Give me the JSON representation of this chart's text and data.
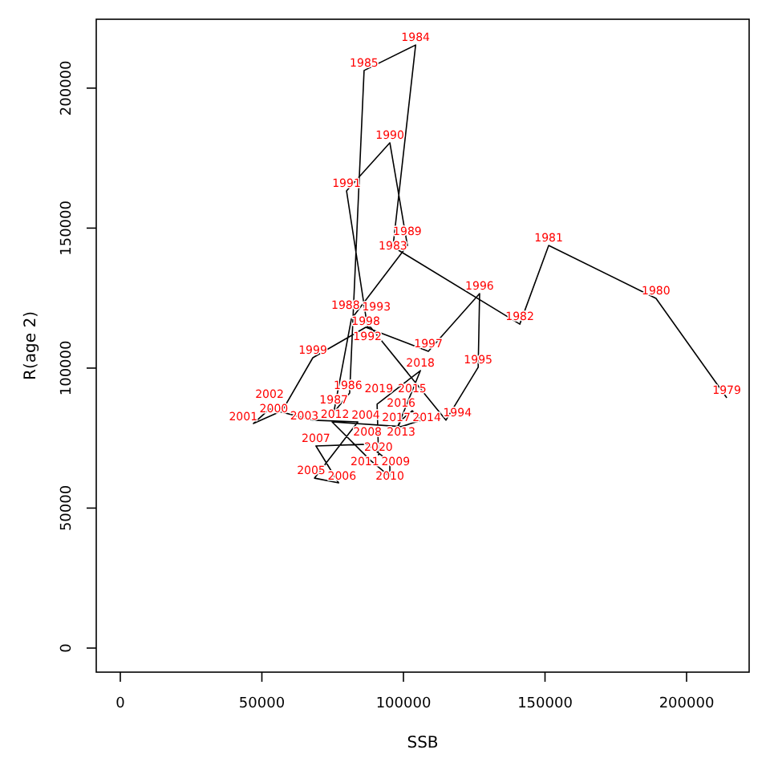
{
  "chart_data": {
    "type": "line",
    "xlabel": "SSB",
    "ylabel": "R(age 2)",
    "color": "#000000",
    "marker": "none",
    "x": [
      214200,
      189200,
      151300,
      141100,
      96300,
      104300,
      86100,
      81000,
      75400,
      81600,
      101400,
      95200,
      79900,
      87300,
      88400,
      115000,
      126400,
      126900,
      108800,
      86700,
      68000,
      57200,
      47000,
      52700,
      68000,
      83900,
      68600,
      77100,
      69100,
      87300,
      95200,
      95200,
      88400,
      74800,
      99200,
      106500,
      103100,
      99200,
      97500,
      106000,
      90700,
      91200
    ],
    "values": [
      89400,
      124900,
      143800,
      115700,
      143300,
      215400,
      206300,
      91100,
      84200,
      117500,
      143800,
      180500,
      163300,
      114600,
      114600,
      81400,
      100300,
      126600,
      106000,
      114600,
      103700,
      84800,
      80200,
      85400,
      81400,
      80800,
      60700,
      59000,
      72200,
      72800,
      66500,
      61300,
      67000,
      80800,
      79100,
      81400,
      84800,
      81400,
      77900,
      99100,
      87100,
      68800
    ],
    "annotations": [
      {
        "text": "1979",
        "x": 214200,
        "y": 89400
      },
      {
        "text": "1980",
        "x": 189200,
        "y": 124900
      },
      {
        "text": "1981",
        "x": 151300,
        "y": 143800
      },
      {
        "text": "1982",
        "x": 141100,
        "y": 115700
      },
      {
        "text": "1983",
        "x": 96300,
        "y": 143300
      },
      {
        "text": "1984",
        "x": 104300,
        "y": 215400
      },
      {
        "text": "1985",
        "x": 86100,
        "y": 206300
      },
      {
        "text": "1986",
        "x": 81000,
        "y": 91100
      },
      {
        "text": "1987",
        "x": 75400,
        "y": 84200
      },
      {
        "text": "1988",
        "x": 81600,
        "y": 117500
      },
      {
        "text": "1989",
        "x": 101400,
        "y": 143800
      },
      {
        "text": "1990",
        "x": 95200,
        "y": 180500
      },
      {
        "text": "1991",
        "x": 79900,
        "y": 163300
      },
      {
        "text": "1992",
        "x": 87300,
        "y": 114600
      },
      {
        "text": "1993",
        "x": 88400,
        "y": 114600
      },
      {
        "text": "1994",
        "x": 115000,
        "y": 81400
      },
      {
        "text": "1995",
        "x": 126400,
        "y": 100300
      },
      {
        "text": "1996",
        "x": 126900,
        "y": 126600
      },
      {
        "text": "1997",
        "x": 108800,
        "y": 106000
      },
      {
        "text": "1998",
        "x": 86700,
        "y": 114600
      },
      {
        "text": "1999",
        "x": 68000,
        "y": 103700
      },
      {
        "text": "2000",
        "x": 57200,
        "y": 84800
      },
      {
        "text": "2001",
        "x": 47000,
        "y": 80200
      },
      {
        "text": "2002",
        "x": 52700,
        "y": 85400
      },
      {
        "text": "2003",
        "x": 68000,
        "y": 81400
      },
      {
        "text": "2004",
        "x": 83900,
        "y": 80800
      },
      {
        "text": "2005",
        "x": 68600,
        "y": 60700
      },
      {
        "text": "2006",
        "x": 77100,
        "y": 59000
      },
      {
        "text": "2007",
        "x": 69100,
        "y": 72200
      },
      {
        "text": "2008",
        "x": 87300,
        "y": 72800
      },
      {
        "text": "2009",
        "x": 95200,
        "y": 66500
      },
      {
        "text": "2010",
        "x": 95200,
        "y": 61300
      },
      {
        "text": "2011",
        "x": 88400,
        "y": 67000
      },
      {
        "text": "2012",
        "x": 74800,
        "y": 80800
      },
      {
        "text": "2013",
        "x": 99200,
        "y": 79100
      },
      {
        "text": "2014",
        "x": 106500,
        "y": 81400
      },
      {
        "text": "2015",
        "x": 103100,
        "y": 84800
      },
      {
        "text": "2016",
        "x": 99200,
        "y": 81400
      },
      {
        "text": "2017",
        "x": 97500,
        "y": 77900
      },
      {
        "text": "2018",
        "x": 106000,
        "y": 99100
      },
      {
        "text": "2019",
        "x": 90700,
        "y": 87100
      },
      {
        "text": "2020",
        "x": 91200,
        "y": 68800
      }
    ],
    "xlim": [
      -8500,
      222100
    ],
    "ylim": [
      -8600,
      224600
    ],
    "xticks": [
      0,
      50000,
      100000,
      150000,
      200000
    ],
    "yticks": [
      0,
      50000,
      100000,
      150000,
      200000
    ]
  }
}
